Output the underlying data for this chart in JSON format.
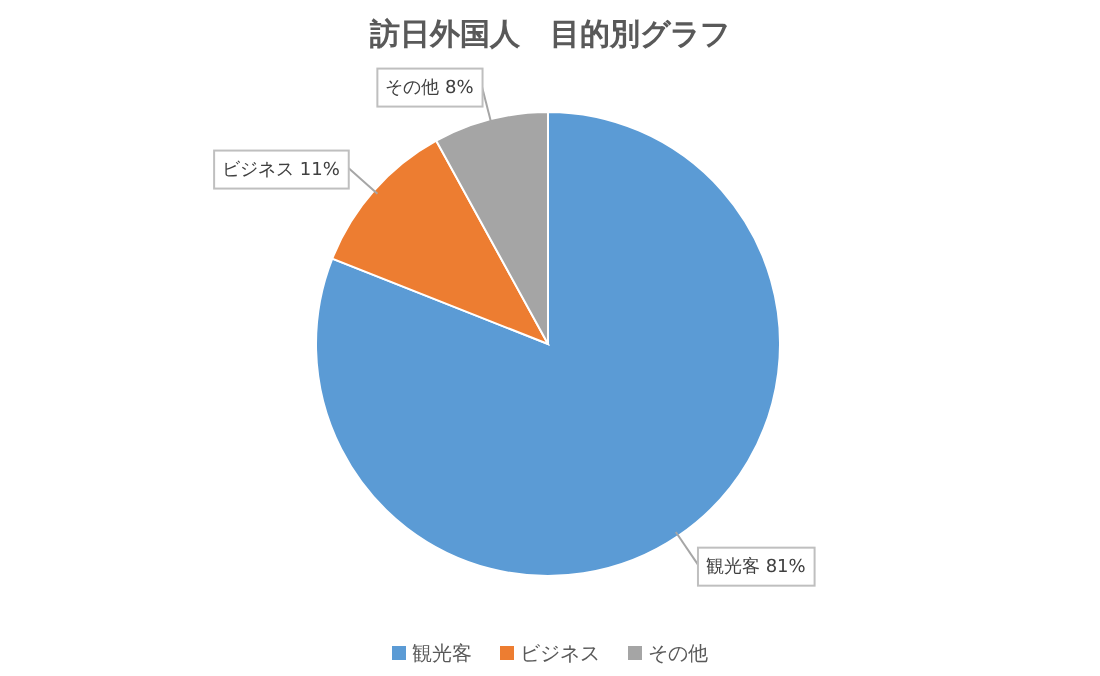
{
  "chart_data": {
    "type": "pie",
    "title": "訪日外国人　目的別グラフ",
    "categories": [
      "観光客",
      "ビジネス",
      "その他"
    ],
    "values": [
      81,
      11,
      8
    ],
    "colors": [
      "#5b9bd5",
      "#ed7d31",
      "#a5a5a5"
    ],
    "value_labels": [
      "81%",
      "11%",
      "8%"
    ],
    "legend": "bottom"
  }
}
